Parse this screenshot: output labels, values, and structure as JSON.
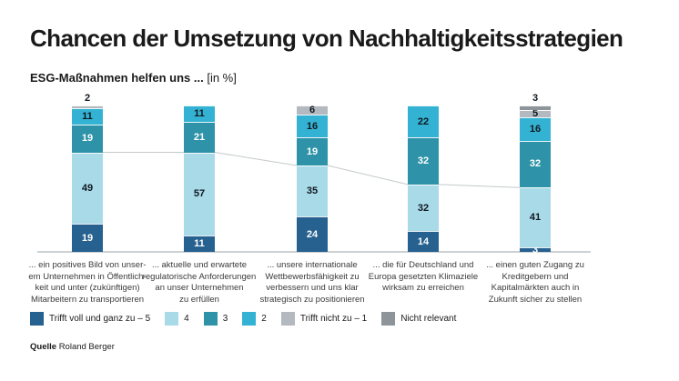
{
  "header": {
    "title": "Chancen der Umsetzung von Nachhaltigkeitsstrategien",
    "subtitle_bold": "ESG-Maßnahmen helfen uns ...",
    "subtitle_unit": "[in %]"
  },
  "chart_data": {
    "type": "bar",
    "stacked": true,
    "unit": "%",
    "ylim": [
      0,
      100
    ],
    "grid": false,
    "legend_position": "bottom",
    "categories": [
      "... ein positives Bild von unserem Unternehmen in Öffentlichkeit und unter (zukünftigen) Mitarbeitern zu transportieren",
      "... aktuelle und erwartete regulatorische Anforderungen an unser Unternehmen zu erfüllen",
      "... unsere internationale Wettbewerbsfähigkeit zu verbessern und uns klar strategisch zu positionieren",
      "... die für Deutschland und Europa gesetzten Klimaziele wirksam zu erreichen",
      "... einen guten Zugang zu Kreditgebern und Kapitalmärkten auch in Zukunft sicher zu stellen"
    ],
    "category_lines": [
      [
        "... ein positives Bild von unser-",
        "em Unternehmen in Öffentlich-",
        "keit und unter (zukünftigen)",
        "Mitarbeitern zu transportieren"
      ],
      [
        "... aktuelle und erwartete",
        "regulatorische Anforderungen",
        "an unser Unternehmen",
        "zu erfüllen"
      ],
      [
        "... unsere internationale",
        "Wettbewerbsfähigkeit zu",
        "verbessern und uns klar",
        "strategisch zu positionieren"
      ],
      [
        "... die für Deutschland und",
        "Europa gesetzten Klimaziele",
        "wirksam zu erreichen"
      ],
      [
        "... einen guten Zugang zu",
        "Kreditgebern und",
        "Kapitalmärkten auch in",
        "Zukunft sicher zu stellen"
      ]
    ],
    "series": [
      {
        "name": "Trifft voll und ganz zu – 5",
        "color": "#26618f",
        "text_color": "#ffffff",
        "values": [
          19,
          11,
          24,
          14,
          3
        ]
      },
      {
        "name": "4",
        "color": "#a9dae8",
        "text_color": "#101820",
        "values": [
          49,
          57,
          35,
          32,
          41
        ]
      },
      {
        "name": "3",
        "color": "#2e93a8",
        "text_color": "#ffffff",
        "values": [
          19,
          21,
          19,
          32,
          32
        ]
      },
      {
        "name": "2",
        "color": "#34b2d3",
        "text_color": "#101820",
        "values": [
          11,
          11,
          16,
          22,
          16
        ]
      },
      {
        "name": "Trifft nicht zu – 1",
        "color": "#b3b9be",
        "text_color": "#101820",
        "values": [
          2,
          0,
          6,
          0,
          5
        ]
      },
      {
        "name": "Nicht relevant",
        "color": "#8d959b",
        "text_color": "#101820",
        "values": [
          0,
          0,
          0,
          0,
          3
        ]
      }
    ],
    "connector_line": {
      "follows": "cumulative share of ratings 5 and 4",
      "values": [
        68,
        68,
        59,
        46,
        44
      ],
      "color": "#c4c9cc"
    },
    "baseline_color": "#ccd1d4"
  },
  "footer": {
    "source_label": "Quelle",
    "source_value": "Roland Berger"
  }
}
